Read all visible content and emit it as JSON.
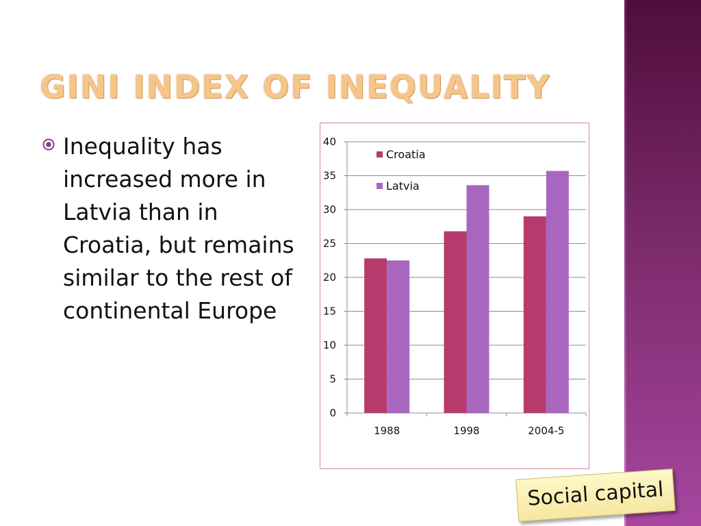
{
  "slide": {
    "title": "Gini index of inequality",
    "bullet": "Inequality has increased more in Latvia than in Croatia, but remains similar to the rest of continental Europe",
    "label": "Social capital"
  },
  "colors": {
    "croatia": "#b73a6c",
    "latvia": "#a866bf",
    "title": "#f6c58a",
    "bullet_icon": "#8e3a86",
    "gridline": "#8c8c8c"
  },
  "icons": {
    "bullet": "radio-bullet-icon"
  },
  "chart_data": {
    "type": "bar",
    "categories": [
      "1988",
      "1998",
      "2004-5"
    ],
    "series": [
      {
        "name": "Croatia",
        "values": [
          22.8,
          26.8,
          29.0
        ]
      },
      {
        "name": "Latvia",
        "values": [
          22.5,
          33.6,
          35.7
        ]
      }
    ],
    "ylim": [
      0,
      40
    ],
    "yticks": [
      "0",
      "5",
      "10",
      "15",
      "20",
      "25",
      "30",
      "35",
      "40"
    ],
    "grid": true,
    "legend_position": "top-left"
  }
}
